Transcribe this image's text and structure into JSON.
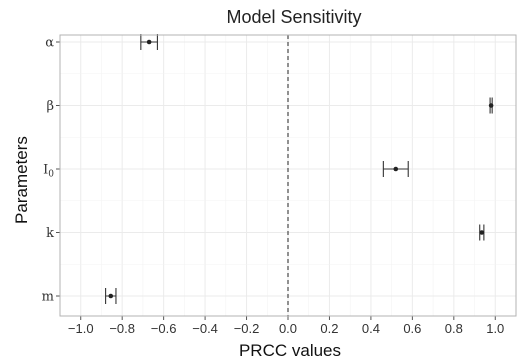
{
  "chart_data": {
    "type": "scatter",
    "subtype": "error-bar",
    "title": "Model Sensitivity",
    "xlabel": "PRCC values",
    "ylabel": "Parameters",
    "xlim": [
      -1.1,
      1.1
    ],
    "x_ticks": [
      -1.0,
      -0.8,
      -0.6,
      -0.4,
      -0.2,
      0.0,
      0.2,
      0.4,
      0.6,
      0.8,
      1.0
    ],
    "x_tick_labels": [
      "−1.0",
      "−0.8",
      "−0.6",
      "−0.4",
      "−0.2",
      "0.0",
      "0.2",
      "0.4",
      "0.6",
      "0.8",
      "1.0"
    ],
    "reference_line": {
      "x": 0.0,
      "style": "dashed"
    },
    "categories": [
      {
        "label": "α",
        "sub": ""
      },
      {
        "label": "β",
        "sub": ""
      },
      {
        "label": "I",
        "sub": "0"
      },
      {
        "label": "k",
        "sub": ""
      },
      {
        "label": "m",
        "sub": ""
      }
    ],
    "points": [
      {
        "category": "α",
        "value": -0.67,
        "lower": -0.71,
        "upper": -0.63
      },
      {
        "category": "β",
        "value": 0.98,
        "lower": 0.975,
        "upper": 0.985
      },
      {
        "category": "I0",
        "value": 0.52,
        "lower": 0.46,
        "upper": 0.58
      },
      {
        "category": "k",
        "value": 0.935,
        "lower": 0.925,
        "upper": 0.945
      },
      {
        "category": "m",
        "value": -0.855,
        "lower": -0.88,
        "upper": -0.83
      }
    ],
    "grid": true,
    "colors": {
      "panel_background": "#ffffff",
      "grid": "#ebebeb",
      "border": "#b3b3b3",
      "point": "#222222",
      "error_bar": "#333333",
      "reference_line": "#555555"
    }
  }
}
